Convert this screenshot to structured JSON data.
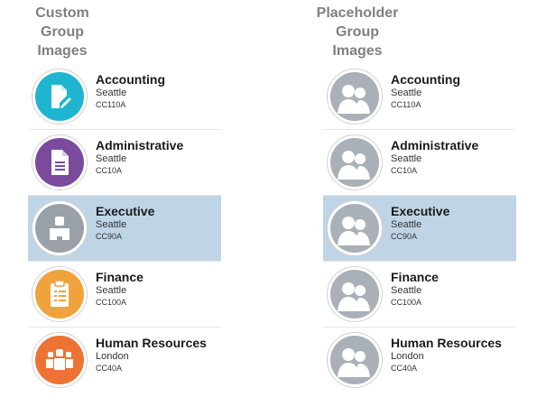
{
  "custom": {
    "header": "Custom\nGroup\nImages",
    "rows": [
      {
        "name": "Accounting",
        "city": "Seattle",
        "code": "CC110A",
        "icon": "document-edit-icon",
        "color": "#1fb5d0"
      },
      {
        "name": "Administrative",
        "city": "Seattle",
        "code": "CC10A",
        "icon": "document-icon",
        "color": "#7b4a9c"
      },
      {
        "name": "Executive",
        "city": "Seattle",
        "code": "CC90A",
        "icon": "person-icon",
        "color": "#9aa0a8"
      },
      {
        "name": "Finance",
        "city": "Seattle",
        "code": "CC100A",
        "icon": "clipboard-icon",
        "color": "#f0a23c"
      },
      {
        "name": "Human Resources",
        "city": "London",
        "code": "CC40A",
        "icon": "people-group-icon",
        "color": "#ed7335"
      }
    ]
  },
  "placeholder": {
    "header": "Placeholder\nGroup\nImages",
    "rows": [
      {
        "name": "Accounting",
        "city": "Seattle",
        "code": "CC110A",
        "icon": "group-placeholder-icon"
      },
      {
        "name": "Administrative",
        "city": "Seattle",
        "code": "CC10A",
        "icon": "group-placeholder-icon"
      },
      {
        "name": "Executive",
        "city": "Seattle",
        "code": "CC90A",
        "icon": "group-placeholder-icon"
      },
      {
        "name": "Finance",
        "city": "Seattle",
        "code": "CC100A",
        "icon": "group-placeholder-icon"
      },
      {
        "name": "Human Resources",
        "city": "London",
        "code": "CC40A",
        "icon": "group-placeholder-icon"
      }
    ]
  },
  "selected_row": "Executive",
  "colors": {
    "selected_background": "#bfd5e6",
    "header_text": "#808080",
    "placeholder_disc": "#a9b0b8"
  }
}
